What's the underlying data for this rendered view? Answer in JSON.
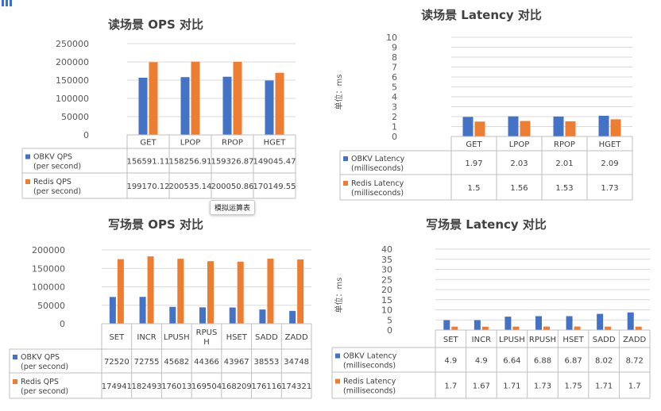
{
  "tooltip": "模拟运算表",
  "colors": {
    "obkv": "#4472c4",
    "redis": "#ed7d31"
  },
  "chart_data": [
    {
      "type": "bar",
      "title": "读场景 OPS 对比",
      "ylabel": "",
      "ylim": [
        0,
        250000
      ],
      "yticks": [
        0,
        50000,
        100000,
        150000,
        200000,
        250000
      ],
      "categories": [
        "GET",
        "LPOP",
        "RPOP",
        "HGET"
      ],
      "series": [
        {
          "name": "OBKV QPS (per second)",
          "label_lines": [
            "OBKV QPS",
            "(per second)"
          ],
          "values": [
            156591.11,
            158256.91,
            159326.87,
            149045.47
          ],
          "display": [
            "156591.11",
            "158256.91",
            "159326.87",
            "149045.47"
          ]
        },
        {
          "name": "Redis QPS (per second)",
          "label_lines": [
            "Redis QPS",
            "(per second)"
          ],
          "values": [
            199170.12,
            200535.14,
            200050.86,
            170149.55
          ],
          "display": [
            "199170.12",
            "200535.14",
            "200050.86",
            "170149.55"
          ]
        }
      ]
    },
    {
      "type": "bar",
      "title": "读场景 Latency 对比",
      "ylabel": "单位：ms",
      "ylim": [
        0,
        10
      ],
      "yticks": [
        0,
        1,
        2,
        3,
        4,
        5,
        6,
        7,
        8,
        9,
        10
      ],
      "categories": [
        "GET",
        "LPOP",
        "RPOP",
        "HGET"
      ],
      "series": [
        {
          "name": "OBKV Latency (milliseconds)",
          "label_lines": [
            "OBKV Latency",
            "(milliseconds)"
          ],
          "values": [
            1.97,
            2.03,
            2.01,
            2.09
          ],
          "display": [
            "1.97",
            "2.03",
            "2.01",
            "2.09"
          ]
        },
        {
          "name": "Redis Latency (milliseconds)",
          "label_lines": [
            "Redis Latency",
            "(milliseconds)"
          ],
          "values": [
            1.5,
            1.56,
            1.53,
            1.73
          ],
          "display": [
            "1.5",
            "1.56",
            "1.53",
            "1.73"
          ]
        }
      ]
    },
    {
      "type": "bar",
      "title": "写场景 OPS 对比",
      "ylabel": "",
      "ylim": [
        0,
        200000
      ],
      "yticks": [
        0,
        50000,
        100000,
        150000,
        200000
      ],
      "categories": [
        "SET",
        "INCR",
        "LPUSH",
        "RPUSH",
        "HSET",
        "SADD",
        "ZADD"
      ],
      "category_lines": [
        [
          "SET"
        ],
        [
          "INCR"
        ],
        [
          "LPUSH"
        ],
        [
          "RPUS",
          "H"
        ],
        [
          "HSET"
        ],
        [
          "SADD"
        ],
        [
          "ZADD"
        ]
      ],
      "series": [
        {
          "name": "OBKV QPS (per second)",
          "label_lines": [
            "OBKV QPS",
            "(per second)"
          ],
          "values": [
            72520,
            72755,
            45682,
            44366,
            43967,
            38553,
            34748
          ],
          "display": [
            "72520",
            "72755",
            "45682",
            "44366",
            "43967",
            "38553",
            "34748"
          ]
        },
        {
          "name": "Redis QPS (per second)",
          "label_lines": [
            "Redis QPS",
            "(per second)"
          ],
          "values": [
            174941,
            182493,
            176013,
            169504,
            168209,
            176116,
            174321
          ],
          "display": [
            "174941",
            "182493",
            "176013",
            "169504",
            "168209",
            "176116",
            "174321"
          ]
        }
      ]
    },
    {
      "type": "bar",
      "title": "写场景 Latency 对比",
      "ylabel": "单位：ms",
      "ylim": [
        0,
        40
      ],
      "yticks": [
        0,
        5,
        10,
        15,
        20,
        25,
        30,
        35,
        40
      ],
      "categories": [
        "SET",
        "INCR",
        "LPUSH",
        "RPUSH",
        "HSET",
        "SADD",
        "ZADD"
      ],
      "series": [
        {
          "name": "OBKV Latency (milliseconds)",
          "label_lines": [
            "OBKV Latency",
            "(milliseconds)"
          ],
          "values": [
            4.9,
            4.9,
            6.64,
            6.88,
            6.87,
            8.02,
            8.72
          ],
          "display": [
            "4.9",
            "4.9",
            "6.64",
            "6.88",
            "6.87",
            "8.02",
            "8.72"
          ]
        },
        {
          "name": "Redis Latency (milliseconds)",
          "label_lines": [
            "Redis Latency",
            "(milliseconds)"
          ],
          "values": [
            1.7,
            1.67,
            1.71,
            1.73,
            1.75,
            1.71,
            1.7
          ],
          "display": [
            "1.7",
            "1.67",
            "1.71",
            "1.73",
            "1.75",
            "1.71",
            "1.7"
          ]
        }
      ]
    }
  ]
}
